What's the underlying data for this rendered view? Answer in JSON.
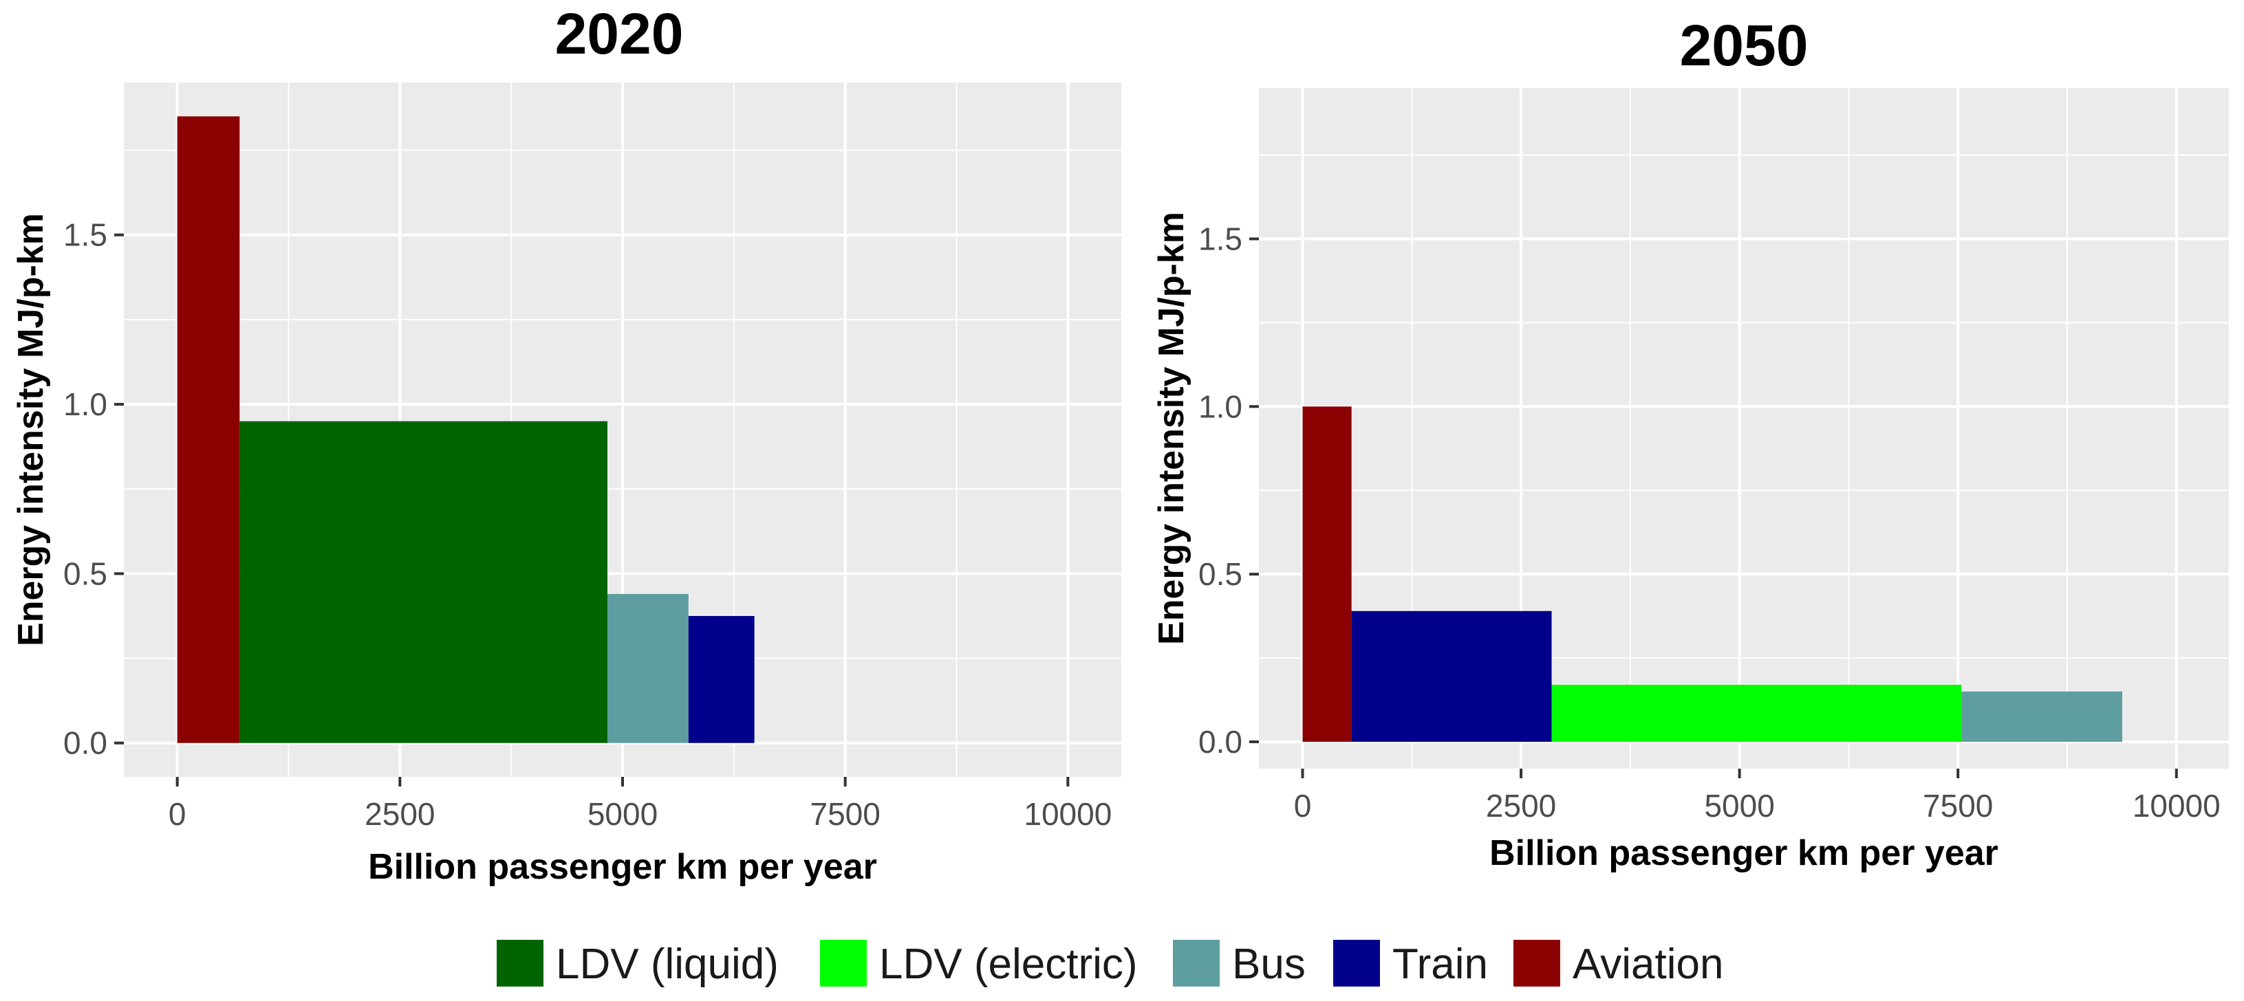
{
  "chart_data": [
    {
      "type": "bar",
      "variant": "variable-width",
      "title": "2020",
      "xlabel": "Billion passenger km per year",
      "ylabel": "Energy intensity MJ/p-km",
      "xlim": [
        -600,
        10600
      ],
      "ylim": [
        -0.1,
        1.95
      ],
      "xticks": [
        0,
        2500,
        5000,
        7500,
        10000
      ],
      "xticklabels": [
        "0",
        "2500",
        "5000",
        "7500",
        "10000"
      ],
      "yticks": [
        0.0,
        0.5,
        1.0,
        1.5
      ],
      "yticklabels": [
        "0.0",
        "0.5",
        "1.0",
        "1.5"
      ],
      "grid": true,
      "bars": [
        {
          "category": "Aviation",
          "x_start": 0,
          "x_end": 700,
          "value": 1.85
        },
        {
          "category": "LDV (liquid)",
          "x_start": 700,
          "x_end": 4830,
          "value": 0.95
        },
        {
          "category": "Bus",
          "x_start": 4830,
          "x_end": 5740,
          "value": 0.44
        },
        {
          "category": "Train",
          "x_start": 5740,
          "x_end": 6480,
          "value": 0.375
        }
      ]
    },
    {
      "type": "bar",
      "variant": "variable-width",
      "title": "2050",
      "xlabel": "Billion passenger km per year",
      "ylabel": "Energy intensity MJ/p-km",
      "xlim": [
        -500,
        10600
      ],
      "ylim": [
        -0.08,
        1.95
      ],
      "xticks": [
        0,
        2500,
        5000,
        7500,
        10000
      ],
      "xticklabels": [
        "0",
        "2500",
        "5000",
        "7500",
        "10000"
      ],
      "yticks": [
        0.0,
        0.5,
        1.0,
        1.5
      ],
      "yticklabels": [
        "0.0",
        "0.5",
        "1.0",
        "1.5"
      ],
      "grid": true,
      "bars": [
        {
          "category": "Aviation",
          "x_start": 0,
          "x_end": 560,
          "value": 1.0
        },
        {
          "category": "Train",
          "x_start": 560,
          "x_end": 2850,
          "value": 0.39
        },
        {
          "category": "LDV (electric)",
          "x_start": 2850,
          "x_end": 7540,
          "value": 0.17
        },
        {
          "category": "Bus",
          "x_start": 7540,
          "x_end": 9380,
          "value": 0.15
        }
      ]
    }
  ],
  "legend": {
    "placement": "bottom",
    "entries": [
      {
        "label": "LDV (liquid)",
        "color": "#006400"
      },
      {
        "label": "LDV (electric)",
        "color": "#00FF00"
      },
      {
        "label": "Bus",
        "color": "#5F9EA0"
      },
      {
        "label": "Train",
        "color": "#00008B"
      },
      {
        "label": "Aviation",
        "color": "#8B0000"
      }
    ]
  },
  "colors": {
    "panel_background": "#EBEBEB",
    "grid": "#FFFFFF",
    "tick_text": "#4D4D4D"
  }
}
